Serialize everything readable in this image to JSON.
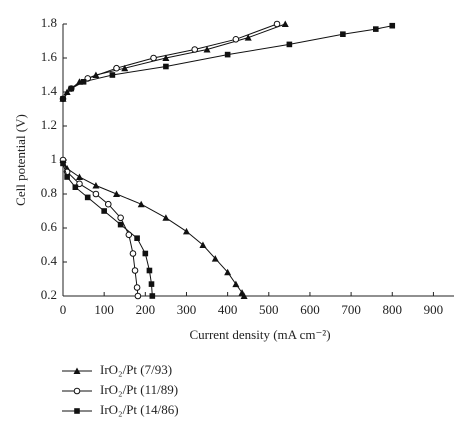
{
  "chart_data": {
    "type": "line",
    "xlabel": "Current density (mA cm⁻²)",
    "ylabel": "Cell potential (V)",
    "xlim": [
      0,
      950
    ],
    "ylim": [
      0.2,
      1.8
    ],
    "xticks": [
      0,
      100,
      200,
      300,
      400,
      500,
      600,
      700,
      800,
      900
    ],
    "yticks": [
      0.2,
      0.4,
      0.6,
      0.8,
      1,
      1.2,
      1.4,
      1.6,
      1.8
    ],
    "legend": "bottom-left",
    "series": [
      {
        "name": "IrO₂/Pt (7/93)",
        "color": "#111111",
        "marker": "triangle",
        "x": [
          0,
          10,
          40,
          80,
          130,
          190,
          250,
          300,
          340,
          370,
          400,
          420,
          435,
          440,
          null,
          0,
          10,
          40,
          80,
          150,
          250,
          350,
          450,
          540
        ],
        "values": [
          1.0,
          0.95,
          0.9,
          0.85,
          0.8,
          0.74,
          0.66,
          0.58,
          0.5,
          0.42,
          0.34,
          0.27,
          0.22,
          0.2,
          null,
          1.36,
          1.4,
          1.46,
          1.5,
          1.54,
          1.6,
          1.65,
          1.72,
          1.8
        ]
      },
      {
        "name": "IrO₂/Pt (11/89)",
        "color": "#111111",
        "marker": "circle-open",
        "x": [
          0,
          10,
          40,
          80,
          110,
          140,
          160,
          170,
          175,
          180,
          182,
          null,
          0,
          20,
          60,
          130,
          220,
          320,
          420,
          520
        ],
        "values": [
          1.0,
          0.93,
          0.86,
          0.8,
          0.74,
          0.66,
          0.56,
          0.45,
          0.35,
          0.25,
          0.2,
          null,
          1.36,
          1.42,
          1.48,
          1.54,
          1.6,
          1.65,
          1.71,
          1.8
        ]
      },
      {
        "name": "IrO₂/Pt (14/86)",
        "color": "#111111",
        "marker": "square",
        "x": [
          0,
          10,
          30,
          60,
          100,
          140,
          180,
          200,
          210,
          215,
          217,
          null,
          0,
          20,
          50,
          120,
          250,
          400,
          550,
          680,
          760,
          800
        ],
        "values": [
          0.98,
          0.9,
          0.84,
          0.78,
          0.7,
          0.62,
          0.54,
          0.45,
          0.35,
          0.27,
          0.2,
          null,
          1.36,
          1.42,
          1.46,
          1.5,
          1.55,
          1.62,
          1.68,
          1.74,
          1.77,
          1.79
        ]
      }
    ]
  }
}
